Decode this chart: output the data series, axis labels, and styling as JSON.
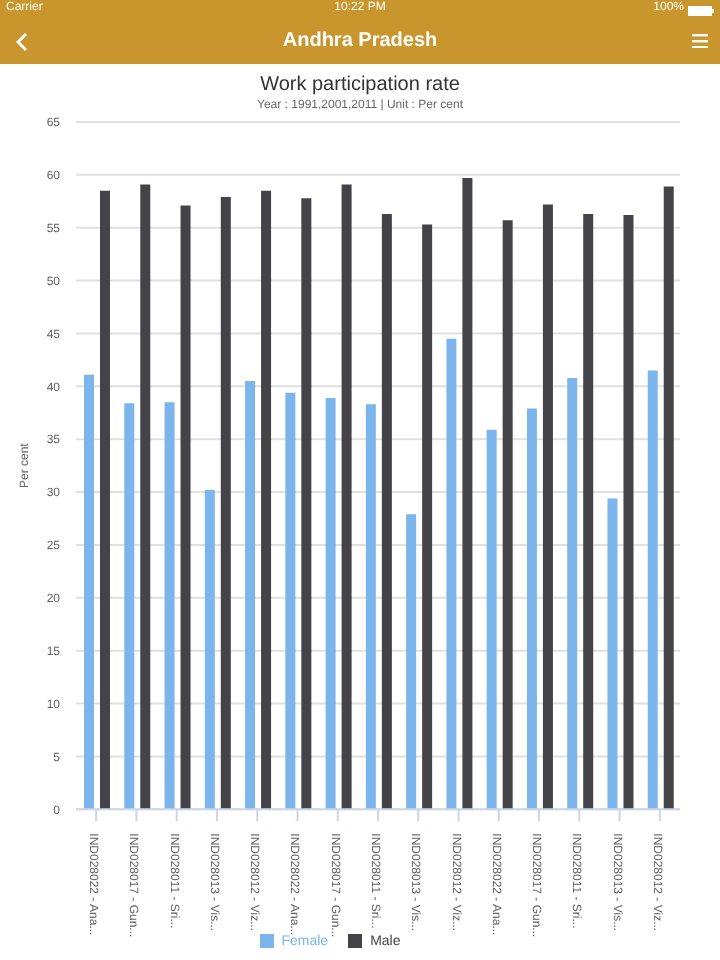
{
  "chart_data": {
    "type": "bar",
    "title": "Work participation rate",
    "subtitle": "Year : 1991,2001,2011 | Unit : Per cent",
    "ylabel": "Per cent",
    "annotations": [
      "Carrier",
      "10:22 PM",
      "100%",
      "Andhra Pradesh"
    ],
    "categories": [
      "IND028022 - Ana...",
      "IND028017 - Gun...",
      "IND028011 - Sri...",
      "IND028013 - Vis...",
      "IND028012 - Viz...",
      "IND028022 - Ana...",
      "IND028017 - Gun...",
      "IND028011 - Sri...",
      "IND028013 - Vis...",
      "IND028012 - Viz...",
      "IND028022 - Ana...",
      "IND028017 - Gun...",
      "IND028011 - Sri...",
      "IND028013 - Vis...",
      "IND028012 - Viz..."
    ],
    "series": [
      {
        "name": "Female",
        "color": "#7cb5ec",
        "values": [
          41.1,
          38.4,
          38.5,
          30.2,
          40.5,
          39.4,
          38.9,
          38.3,
          27.9,
          44.5,
          35.9,
          37.9,
          40.8,
          29.4,
          41.5
        ]
      },
      {
        "name": "Male",
        "color": "#434348",
        "values": [
          58.5,
          59.1,
          57.1,
          57.9,
          58.5,
          57.8,
          59.1,
          56.3,
          55.3,
          59.7,
          55.7,
          57.2,
          56.3,
          56.2,
          58.9
        ]
      }
    ],
    "ylim": [
      0,
      65
    ],
    "yticks": [
      0,
      5,
      10,
      15,
      20,
      25,
      30,
      35,
      40,
      45,
      50,
      55,
      60,
      65
    ],
    "grid": "y",
    "legend": "bottom"
  }
}
